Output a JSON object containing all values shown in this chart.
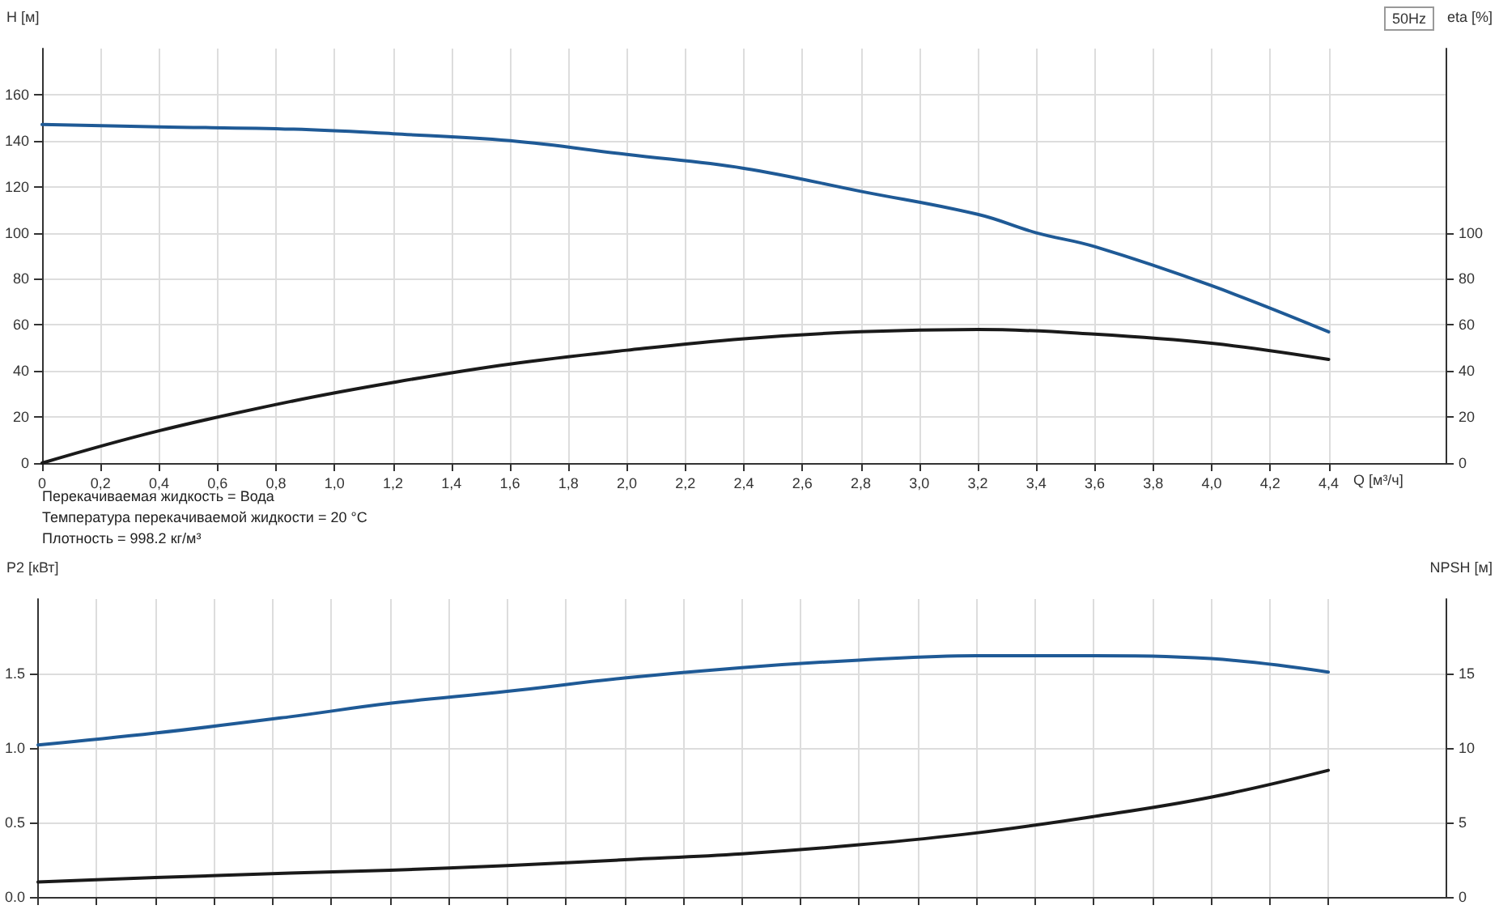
{
  "chart_data": [
    {
      "type": "line",
      "xlabel": "Q [м³/ч]",
      "ylabel": "H [м]",
      "y2label": "eta [%]",
      "xlim": [
        0,
        4.8
      ],
      "xticks": [
        0,
        {
          "value": 0.2,
          "label": "0,2"
        },
        {
          "value": 0.4,
          "label": "0,4"
        },
        {
          "value": 0.6,
          "label": "0,6"
        },
        {
          "value": 0.8,
          "label": "0,8"
        },
        {
          "value": 1.0,
          "label": "1,0"
        },
        {
          "value": 1.2,
          "label": "1,2"
        },
        {
          "value": 1.4,
          "label": "1,4"
        },
        {
          "value": 1.6,
          "label": "1,6"
        },
        {
          "value": 1.8,
          "label": "1,8"
        },
        {
          "value": 2.0,
          "label": "2,0"
        },
        {
          "value": 2.2,
          "label": "2,2"
        },
        {
          "value": 2.4,
          "label": "2,4"
        },
        {
          "value": 2.6,
          "label": "2,6"
        },
        {
          "value": 2.8,
          "label": "2,8"
        },
        {
          "value": 3.0,
          "label": "3,0"
        },
        {
          "value": 3.2,
          "label": "3,2"
        },
        {
          "value": 3.4,
          "label": "3,4"
        },
        {
          "value": 3.6,
          "label": "3,6"
        },
        {
          "value": 3.8,
          "label": "3,8"
        },
        {
          "value": 4.0,
          "label": "4,0"
        },
        {
          "value": 4.2,
          "label": "4,2"
        },
        {
          "value": 4.4,
          "label": "4,4"
        }
      ],
      "ylim": [
        0,
        180
      ],
      "yticks": [
        0,
        20,
        40,
        60,
        80,
        100,
        120,
        140,
        160
      ],
      "y2lim": [
        0,
        180
      ],
      "y2ticks": [
        0,
        20,
        40,
        60,
        80,
        100
      ],
      "grid": true,
      "marker": "none",
      "line_style": "solid",
      "series": [
        {
          "color": "#1f5a96",
          "x": [
            0,
            0.4,
            0.86,
            1.2,
            1.6,
            2.0,
            2.4,
            2.8,
            3.2,
            3.4,
            3.6,
            4.0,
            4.4
          ],
          "values": [
            147,
            146,
            145,
            143,
            140,
            134,
            128,
            118,
            108,
            100,
            94,
            77,
            57
          ]
        },
        {
          "color": "#1a1a1a",
          "axis": "y2",
          "x": [
            0,
            0.4,
            0.86,
            1.2,
            1.6,
            2.0,
            2.4,
            2.8,
            3.2,
            3.6,
            4.0,
            4.4
          ],
          "values": [
            0,
            14,
            27,
            35,
            43,
            49,
            54,
            57,
            58,
            56,
            52,
            45
          ]
        }
      ],
      "annotations": [
        "50Hz",
        "Перекачиваемая жидкость = Вода",
        "Температура перекачиваемой жидкости = 20 °C",
        "Плотность = 998.2 кг/м³"
      ]
    },
    {
      "type": "line",
      "ylabel": "P2 [кВт]",
      "y2label": "NPSH [м]",
      "xlim": [
        0,
        4.8
      ],
      "xticks": [
        0,
        0.2,
        0.4,
        0.6,
        0.8,
        1.0,
        1.2,
        1.4,
        1.6,
        1.8,
        2.0,
        2.2,
        2.4,
        2.6,
        2.8,
        3.0,
        3.2,
        3.4,
        3.6,
        3.8,
        4.0,
        4.2,
        4.4
      ],
      "ylim": [
        0,
        2
      ],
      "yticks": [
        {
          "value": 0,
          "label": "0.0"
        },
        0.5,
        {
          "value": 1,
          "label": "1.0"
        },
        1.5
      ],
      "y2lim": [
        0,
        20
      ],
      "y2ticks": [
        0,
        5,
        10,
        15
      ],
      "grid": true,
      "marker": "none",
      "line_style": "solid",
      "tick_labels": "y",
      "series": [
        {
          "color": "#1f5a96",
          "x": [
            0,
            0.4,
            0.86,
            1.2,
            1.6,
            2.0,
            2.4,
            2.8,
            3.2,
            3.6,
            4.0,
            4.4
          ],
          "values": [
            1.02,
            1.1,
            1.21,
            1.3,
            1.38,
            1.47,
            1.54,
            1.59,
            1.62,
            1.62,
            1.6,
            1.51
          ]
        },
        {
          "color": "#1a1a1a",
          "axis": "y2",
          "x": [
            0,
            0.4,
            0.86,
            1.2,
            1.6,
            2.0,
            2.4,
            2.8,
            3.2,
            3.6,
            4.0,
            4.4
          ],
          "values": [
            1.0,
            1.3,
            1.6,
            1.8,
            2.1,
            2.5,
            2.9,
            3.5,
            4.3,
            5.4,
            6.7,
            8.5
          ]
        }
      ]
    }
  ]
}
